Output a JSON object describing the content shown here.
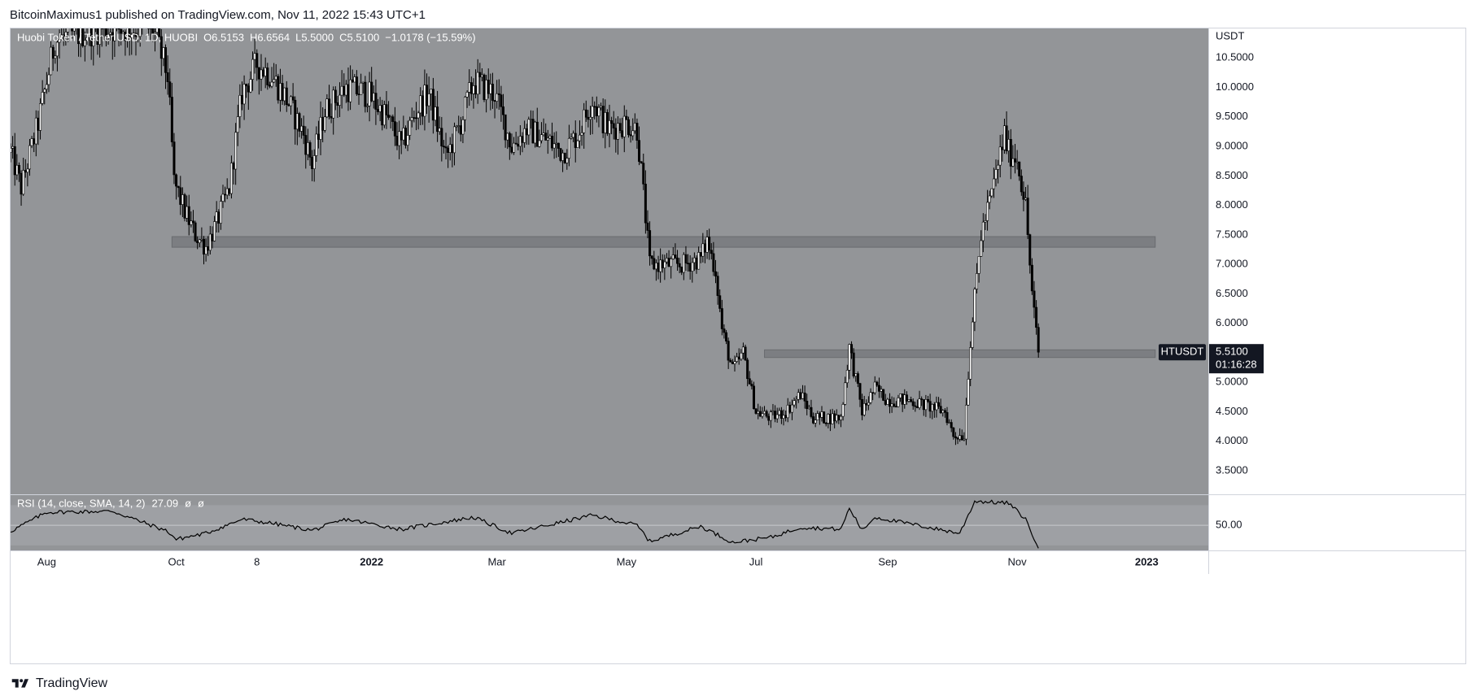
{
  "header": {
    "text": "BitcoinMaximus1 published on TradingView.com, Nov 11, 2022 15:43 UTC+1"
  },
  "legend": {
    "symbol": "Huobi Token / Tether USD, 1D, HUOBI",
    "o_label": "O",
    "o_value": "6.5153",
    "h_label": "H",
    "h_value": "6.6564",
    "l_label": "L",
    "l_value": "5.5000",
    "c_label": "C",
    "c_value": "5.5100",
    "change": "−1.0178 (−15.59%)"
  },
  "price_axis": {
    "currency": "USDT",
    "ticks": [
      "10.5000",
      "10.0000",
      "9.5000",
      "9.0000",
      "8.5000",
      "8.0000",
      "7.5000",
      "7.0000",
      "6.5000",
      "6.0000",
      "5.5000",
      "5.0000",
      "4.5000",
      "4.0000",
      "3.5000"
    ],
    "last_price_label": "HTUSDT",
    "last_price": "5.5100",
    "countdown": "01:16:28"
  },
  "rsi": {
    "label": "RSI (14, close, SMA, 14, 2)",
    "value": "27.09",
    "extra1": "ø",
    "extra2": "ø",
    "tick": "50.00"
  },
  "time_axis": {
    "labels": [
      "Aug",
      "Oct",
      "8",
      "2022",
      "Mar",
      "May",
      "Jul",
      "Sep",
      "Nov",
      "2023"
    ]
  },
  "footer": {
    "brand": "TradingView"
  },
  "colors": {
    "pane_background": "#939598",
    "candles": "#000000",
    "zones": "#7c7e82",
    "zones_border": "#6a6c70",
    "price_label_bg": "#131722",
    "axis_text": "#131722"
  },
  "chart_data": {
    "type": "candlestick",
    "title": "Huobi Token / Tether USD, 1D, HUOBI",
    "unit": "USDT",
    "ylim": [
      3.1,
      11.0
    ],
    "x_range": [
      "2021-07-15",
      "2023-01-30"
    ],
    "grid": false,
    "support_resistance_zones": [
      {
        "from": "2021-09-29",
        "to": "2023-01-05",
        "low": 7.29,
        "high": 7.47
      },
      {
        "from": "2022-07-05",
        "to": "2023-01-05",
        "low": 5.42,
        "high": 5.55
      }
    ],
    "price_path": [
      {
        "date": "2021-07-15",
        "close": 8.9
      },
      {
        "date": "2021-07-20",
        "close": 8.3
      },
      {
        "date": "2021-07-28",
        "close": 9.4
      },
      {
        "date": "2021-08-05",
        "close": 10.8
      },
      {
        "date": "2021-08-15",
        "close": 10.9
      },
      {
        "date": "2021-08-25",
        "close": 11.0
      },
      {
        "date": "2021-09-05",
        "close": 11.0
      },
      {
        "date": "2021-09-20",
        "close": 11.0
      },
      {
        "date": "2021-09-27",
        "close": 10.2
      },
      {
        "date": "2021-09-30",
        "close": 8.4
      },
      {
        "date": "2021-10-05",
        "close": 7.9
      },
      {
        "date": "2021-10-10",
        "close": 7.5
      },
      {
        "date": "2021-10-15",
        "close": 7.3
      },
      {
        "date": "2021-10-20",
        "close": 7.7
      },
      {
        "date": "2021-10-26",
        "close": 8.3
      },
      {
        "date": "2021-11-01",
        "close": 9.9
      },
      {
        "date": "2021-11-08",
        "close": 10.4
      },
      {
        "date": "2021-11-15",
        "close": 10.2
      },
      {
        "date": "2021-11-22",
        "close": 9.8
      },
      {
        "date": "2021-11-30",
        "close": 9.2
      },
      {
        "date": "2021-12-04",
        "close": 8.7
      },
      {
        "date": "2021-12-10",
        "close": 9.6
      },
      {
        "date": "2021-12-20",
        "close": 10.0
      },
      {
        "date": "2021-12-30",
        "close": 9.9
      },
      {
        "date": "2022-01-08",
        "close": 9.5
      },
      {
        "date": "2022-01-15",
        "close": 9.0
      },
      {
        "date": "2022-01-22",
        "close": 9.6
      },
      {
        "date": "2022-01-28",
        "close": 9.9
      },
      {
        "date": "2022-02-05",
        "close": 8.8
      },
      {
        "date": "2022-02-12",
        "close": 9.4
      },
      {
        "date": "2022-02-18",
        "close": 10.1
      },
      {
        "date": "2022-02-28",
        "close": 9.9
      },
      {
        "date": "2022-03-08",
        "close": 9.0
      },
      {
        "date": "2022-03-15",
        "close": 9.3
      },
      {
        "date": "2022-03-25",
        "close": 9.1
      },
      {
        "date": "2022-04-01",
        "close": 8.9
      },
      {
        "date": "2022-04-08",
        "close": 9.2
      },
      {
        "date": "2022-04-15",
        "close": 9.8
      },
      {
        "date": "2022-04-22",
        "close": 9.3
      },
      {
        "date": "2022-05-01",
        "close": 9.4
      },
      {
        "date": "2022-05-06",
        "close": 9.3
      },
      {
        "date": "2022-05-09",
        "close": 8.2
      },
      {
        "date": "2022-05-12",
        "close": 7.0
      },
      {
        "date": "2022-05-20",
        "close": 7.0
      },
      {
        "date": "2022-05-28",
        "close": 7.0
      },
      {
        "date": "2022-06-05",
        "close": 7.1
      },
      {
        "date": "2022-06-08",
        "close": 7.4
      },
      {
        "date": "2022-06-12",
        "close": 6.9
      },
      {
        "date": "2022-06-15",
        "close": 5.9
      },
      {
        "date": "2022-06-20",
        "close": 5.2
      },
      {
        "date": "2022-06-25",
        "close": 5.5
      },
      {
        "date": "2022-07-01",
        "close": 4.5
      },
      {
        "date": "2022-07-08",
        "close": 4.4
      },
      {
        "date": "2022-07-15",
        "close": 4.5
      },
      {
        "date": "2022-07-22",
        "close": 4.8
      },
      {
        "date": "2022-07-28",
        "close": 4.4
      },
      {
        "date": "2022-08-05",
        "close": 4.4
      },
      {
        "date": "2022-08-10",
        "close": 4.4
      },
      {
        "date": "2022-08-14",
        "close": 5.6
      },
      {
        "date": "2022-08-20",
        "close": 4.5
      },
      {
        "date": "2022-08-26",
        "close": 4.9
      },
      {
        "date": "2022-09-01",
        "close": 4.7
      },
      {
        "date": "2022-09-10",
        "close": 4.7
      },
      {
        "date": "2022-09-20",
        "close": 4.6
      },
      {
        "date": "2022-09-28",
        "close": 4.5
      },
      {
        "date": "2022-10-02",
        "close": 4.1
      },
      {
        "date": "2022-10-07",
        "close": 4.1
      },
      {
        "date": "2022-10-10",
        "close": 5.7
      },
      {
        "date": "2022-10-15",
        "close": 7.5
      },
      {
        "date": "2022-10-20",
        "close": 8.2
      },
      {
        "date": "2022-10-26",
        "close": 9.2
      },
      {
        "date": "2022-10-28",
        "close": 8.9
      },
      {
        "date": "2022-11-01",
        "close": 8.8
      },
      {
        "date": "2022-11-05",
        "close": 8.0
      },
      {
        "date": "2022-11-08",
        "close": 6.5
      },
      {
        "date": "2022-11-11",
        "close": 5.51
      }
    ],
    "rsi_path": [
      {
        "date": "2021-07-15",
        "value": 44
      },
      {
        "date": "2021-08-01",
        "value": 63
      },
      {
        "date": "2021-09-01",
        "value": 64
      },
      {
        "date": "2021-09-27",
        "value": 44
      },
      {
        "date": "2021-10-01",
        "value": 36
      },
      {
        "date": "2021-10-15",
        "value": 42
      },
      {
        "date": "2021-11-01",
        "value": 56
      },
      {
        "date": "2021-11-15",
        "value": 52
      },
      {
        "date": "2021-12-04",
        "value": 45
      },
      {
        "date": "2021-12-20",
        "value": 56
      },
      {
        "date": "2022-01-15",
        "value": 46
      },
      {
        "date": "2022-02-18",
        "value": 58
      },
      {
        "date": "2022-03-08",
        "value": 42
      },
      {
        "date": "2022-04-15",
        "value": 60
      },
      {
        "date": "2022-05-06",
        "value": 50
      },
      {
        "date": "2022-05-12",
        "value": 34
      },
      {
        "date": "2022-06-05",
        "value": 49
      },
      {
        "date": "2022-06-20",
        "value": 33
      },
      {
        "date": "2022-07-08",
        "value": 38
      },
      {
        "date": "2022-07-22",
        "value": 48
      },
      {
        "date": "2022-08-10",
        "value": 46
      },
      {
        "date": "2022-08-14",
        "value": 67
      },
      {
        "date": "2022-08-20",
        "value": 45
      },
      {
        "date": "2022-08-26",
        "value": 58
      },
      {
        "date": "2022-09-20",
        "value": 48
      },
      {
        "date": "2022-10-05",
        "value": 42
      },
      {
        "date": "2022-10-12",
        "value": 74
      },
      {
        "date": "2022-10-28",
        "value": 72
      },
      {
        "date": "2022-11-05",
        "value": 56
      },
      {
        "date": "2022-11-11",
        "value": 27.09
      }
    ],
    "rsi_ylim": [
      25,
      80
    ],
    "rsi_band": [
      30,
      70
    ],
    "rsi_midline": 50
  }
}
